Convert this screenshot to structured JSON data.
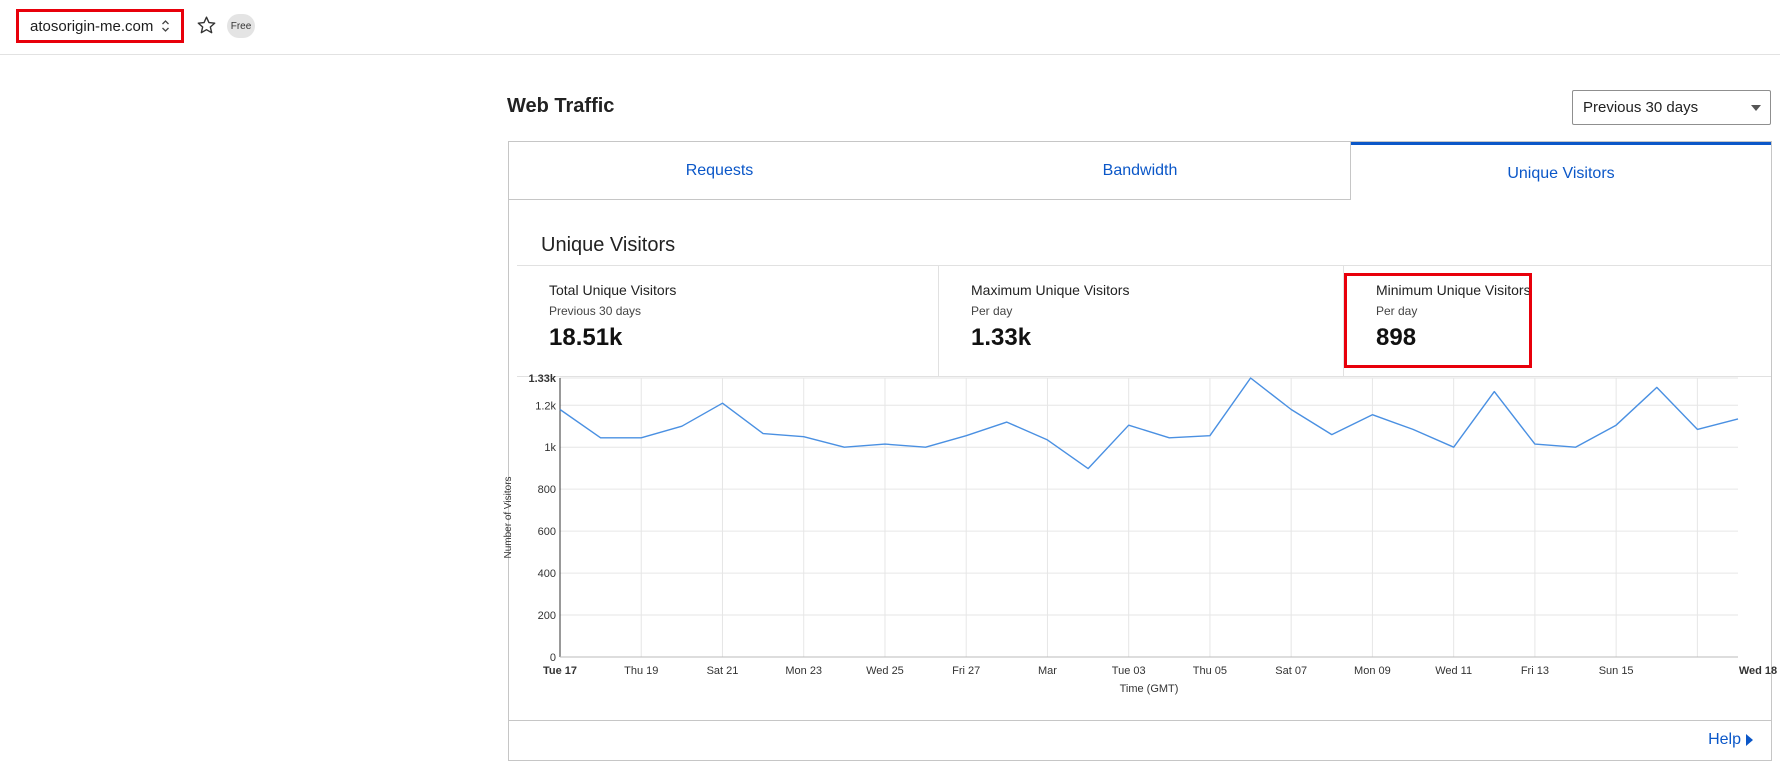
{
  "topbar": {
    "zone_name": "atosorigin-me.com",
    "plan_badge": "Free",
    "icons": {
      "zone_switch": "up-down-chevron-icon",
      "favorite": "star-icon"
    }
  },
  "section": {
    "title": "Web Traffic",
    "period_select": {
      "selected": "Previous 30 days"
    }
  },
  "tabs": [
    {
      "label": "Requests",
      "active": false
    },
    {
      "label": "Bandwidth",
      "active": false
    },
    {
      "label": "Unique Visitors",
      "active": true
    }
  ],
  "panel": {
    "title": "Unique Visitors",
    "stats": [
      {
        "label": "Total Unique Visitors",
        "sub": "Previous 30 days",
        "value": "18.51k"
      },
      {
        "label": "Maximum Unique Visitors",
        "sub": "Per day",
        "value": "1.33k"
      },
      {
        "label": "Minimum Unique Visitors",
        "sub": "Per day",
        "value": "898"
      }
    ]
  },
  "chart_data": {
    "type": "line",
    "xlabel": "Time (GMT)",
    "ylabel": "Number of Visitors",
    "ylim": [
      0,
      1330
    ],
    "y_ticks": [
      {
        "value": 0,
        "label": "0"
      },
      {
        "value": 200,
        "label": "200"
      },
      {
        "value": 400,
        "label": "400"
      },
      {
        "value": 600,
        "label": "600"
      },
      {
        "value": 800,
        "label": "800"
      },
      {
        "value": 1000,
        "label": "1k"
      },
      {
        "value": 1200,
        "label": "1.2k"
      },
      {
        "value": 1330,
        "label": "1.33k",
        "bold": true
      }
    ],
    "x_ticks": [
      {
        "index": 0,
        "label": "Tue 17",
        "bold": true
      },
      {
        "index": 2,
        "label": "Thu 19"
      },
      {
        "index": 4,
        "label": "Sat 21"
      },
      {
        "index": 6,
        "label": "Mon 23"
      },
      {
        "index": 8,
        "label": "Wed 25"
      },
      {
        "index": 10,
        "label": "Fri 27"
      },
      {
        "index": 12,
        "label": "Mar"
      },
      {
        "index": 14,
        "label": "Tue 03"
      },
      {
        "index": 16,
        "label": "Thu 05"
      },
      {
        "index": 18,
        "label": "Sat 07"
      },
      {
        "index": 20,
        "label": "Mon 09"
      },
      {
        "index": 22,
        "label": "Wed 11"
      },
      {
        "index": 24,
        "label": "Fri 13"
      },
      {
        "index": 26,
        "label": "Sun 15"
      },
      {
        "index": 29,
        "label": "Wed 18",
        "bold": true
      }
    ],
    "grid": true,
    "series": [
      {
        "color": "#4a90e2",
        "values": [
          1180,
          1045,
          1045,
          1100,
          1210,
          1065,
          1050,
          1000,
          1015,
          1000,
          1055,
          1120,
          1035,
          898,
          1105,
          1045,
          1055,
          1330,
          1180,
          1060,
          1155,
          1085,
          1000,
          1265,
          1015,
          1000,
          1105,
          1285,
          1085,
          1135
        ]
      }
    ]
  },
  "footer": {
    "help_label": "Help"
  }
}
